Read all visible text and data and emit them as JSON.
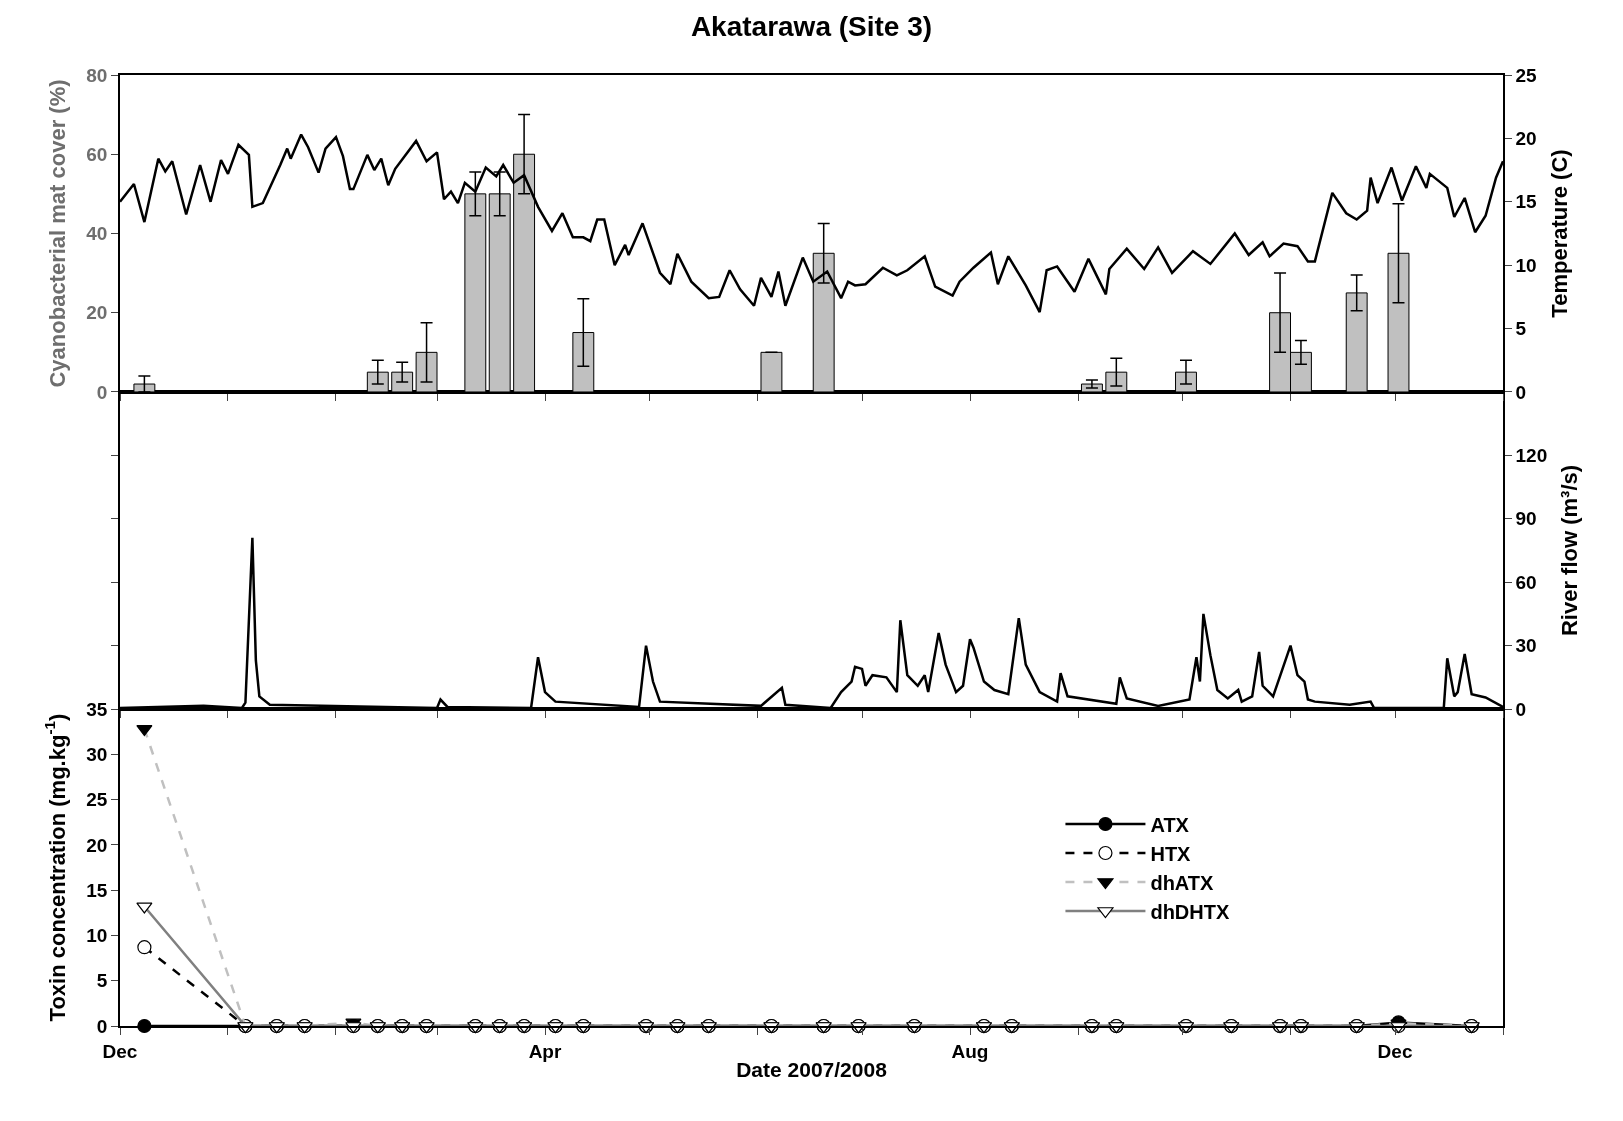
{
  "chart_data": [
    {
      "type": "bar",
      "title": "Akatarawa (Site 3)",
      "ylabel": "Cyanobacterial mat cover (%)",
      "y2label": "Temperature (C)",
      "xlim": [
        "2007-12-01",
        "2009-01-01"
      ],
      "xticks": [
        {
          "value": "2007-12-01",
          "label": null
        },
        {
          "value": "2008-01-01",
          "label": null
        },
        {
          "value": "2008-02-01",
          "label": null
        },
        {
          "value": "2008-03-01",
          "label": null
        },
        {
          "value": "2008-04-01",
          "label": null
        },
        {
          "value": "2008-05-01",
          "label": null
        },
        {
          "value": "2008-06-01",
          "label": null
        },
        {
          "value": "2008-07-01",
          "label": null
        },
        {
          "value": "2008-08-01",
          "label": null
        },
        {
          "value": "2008-09-01",
          "label": null
        },
        {
          "value": "2008-10-01",
          "label": null
        },
        {
          "value": "2008-11-01",
          "label": null
        },
        {
          "value": "2008-12-01",
          "label": null
        },
        {
          "value": "2009-01-01",
          "label": null
        }
      ],
      "ylim": [
        0,
        80
      ],
      "yticks": [
        0,
        20,
        40,
        60,
        80
      ],
      "y2lim": [
        0,
        25
      ],
      "y2ticks": [
        0,
        5,
        10,
        15,
        20,
        25
      ],
      "tick_labels": "y",
      "grid": false,
      "x": [
        "2007-12-08",
        "2008-02-13",
        "2008-02-20",
        "2008-02-27",
        "2008-03-12",
        "2008-03-19",
        "2008-03-26",
        "2008-04-12",
        "2008-06-05",
        "2008-06-20",
        "2008-09-05",
        "2008-09-12",
        "2008-10-02",
        "2008-10-29",
        "2008-11-04",
        "2008-11-20",
        "2008-12-02"
      ],
      "series": [
        {
          "type": "bar",
          "color": "#c0c0c0",
          "values": [
            2,
            5,
            5,
            10,
            50,
            50,
            60,
            15,
            10,
            35,
            2,
            5,
            5,
            20,
            10,
            25,
            35
          ],
          "errors": [
            2,
            3,
            2.5,
            7.5,
            5.5,
            5.5,
            10,
            8.5,
            null,
            7.5,
            1,
            3.5,
            3,
            10,
            3,
            4.5,
            12.5
          ]
        },
        {
          "type": "line",
          "axis": "y2",
          "color": "#000000",
          "x": [
            "2007-12-01",
            "2007-12-05",
            "2007-12-08",
            "2007-12-12",
            "2007-12-14",
            "2007-12-16",
            "2007-12-20",
            "2007-12-24",
            "2007-12-27",
            "2007-12-30",
            "2008-01-01",
            "2008-01-04",
            "2008-01-07",
            "2008-01-08",
            "2008-01-11",
            "2008-01-16",
            "2008-01-18",
            "2008-01-19",
            "2008-01-22",
            "2008-01-24",
            "2008-01-27",
            "2008-01-29",
            "2008-02-01",
            "2008-02-03",
            "2008-02-05",
            "2008-02-06",
            "2008-02-10",
            "2008-02-12",
            "2008-02-14",
            "2008-02-16",
            "2008-02-18",
            "2008-02-24",
            "2008-02-27",
            "2008-03-01",
            "2008-03-03",
            "2008-03-05",
            "2008-03-07",
            "2008-03-09",
            "2008-03-12",
            "2008-03-15",
            "2008-03-18",
            "2008-03-20",
            "2008-03-23",
            "2008-03-26",
            "2008-03-30",
            "2008-04-03",
            "2008-04-06",
            "2008-04-09",
            "2008-04-12",
            "2008-04-14",
            "2008-04-16",
            "2008-04-18",
            "2008-04-21",
            "2008-04-24",
            "2008-04-25",
            "2008-04-29",
            "2008-05-04",
            "2008-05-07",
            "2008-05-09",
            "2008-05-13",
            "2008-05-18",
            "2008-05-21",
            "2008-05-24",
            "2008-05-27",
            "2008-05-31",
            "2008-06-02",
            "2008-06-05",
            "2008-06-07",
            "2008-06-09",
            "2008-06-14",
            "2008-06-17",
            "2008-06-21",
            "2008-06-25",
            "2008-06-27",
            "2008-06-29",
            "2008-07-02",
            "2008-07-07",
            "2008-07-11",
            "2008-07-14",
            "2008-07-19",
            "2008-07-22",
            "2008-07-27",
            "2008-07-29",
            "2008-08-02",
            "2008-08-07",
            "2008-08-09",
            "2008-08-12",
            "2008-08-17",
            "2008-08-21",
            "2008-08-23",
            "2008-08-26",
            "2008-08-31",
            "2008-09-04",
            "2008-09-09",
            "2008-09-10",
            "2008-09-15",
            "2008-09-20",
            "2008-09-24",
            "2008-09-28",
            "2008-10-04",
            "2008-10-09",
            "2008-10-16",
            "2008-10-20",
            "2008-10-24",
            "2008-10-26",
            "2008-10-30",
            "2008-11-03",
            "2008-11-06",
            "2008-11-08",
            "2008-11-13",
            "2008-11-17",
            "2008-11-20",
            "2008-11-23",
            "2008-11-24",
            "2008-11-26",
            "2008-11-30",
            "2008-12-03",
            "2008-12-07",
            "2008-12-10",
            "2008-12-11",
            "2008-12-16",
            "2008-12-18",
            "2008-12-21",
            "2008-12-24",
            "2008-12-27",
            "2008-12-30",
            "2009-01-01"
          ],
          "values": [
            15.0,
            16.4,
            13.4,
            18.4,
            17.4,
            18.2,
            14.0,
            17.9,
            15.0,
            18.3,
            17.2,
            19.5,
            18.7,
            14.6,
            14.9,
            17.9,
            19.2,
            18.4,
            20.3,
            19.3,
            17.3,
            19.2,
            20.1,
            18.6,
            16.0,
            16.0,
            18.7,
            17.5,
            18.4,
            16.3,
            17.6,
            19.8,
            18.2,
            18.9,
            15.2,
            15.8,
            14.9,
            16.5,
            15.8,
            17.7,
            17.0,
            17.9,
            16.5,
            17.1,
            14.6,
            12.7,
            14.1,
            12.2,
            12.2,
            11.9,
            13.6,
            13.6,
            10.0,
            11.6,
            10.8,
            13.3,
            9.4,
            8.5,
            10.9,
            8.7,
            7.4,
            7.5,
            9.6,
            8.1,
            6.8,
            9.0,
            7.5,
            9.5,
            6.8,
            10.6,
            8.7,
            9.5,
            7.4,
            8.7,
            8.4,
            8.5,
            9.8,
            9.2,
            9.6,
            10.7,
            8.3,
            7.6,
            8.7,
            9.8,
            11.0,
            8.5,
            10.7,
            8.4,
            6.3,
            9.6,
            9.9,
            7.9,
            10.5,
            7.7,
            9.7,
            11.3,
            9.7,
            11.4,
            9.4,
            11.1,
            10.1,
            12.5,
            10.8,
            11.8,
            10.7,
            11.7,
            11.5,
            10.3,
            10.3,
            15.7,
            14.1,
            13.6,
            14.3,
            16.9,
            14.9,
            17.7,
            15.1,
            17.8,
            16.1,
            17.2,
            16.1,
            13.8,
            15.3,
            12.6,
            13.9,
            16.9,
            18.2
          ]
        }
      ]
    },
    {
      "type": "line",
      "y2label": "River flow (m³/s)",
      "xlim": [
        "2007-12-01",
        "2009-01-01"
      ],
      "xticks": [
        {
          "value": "2007-12-01",
          "label": null
        },
        {
          "value": "2008-01-01",
          "label": null
        },
        {
          "value": "2008-02-01",
          "label": null
        },
        {
          "value": "2008-03-01",
          "label": null
        },
        {
          "value": "2008-04-01",
          "label": null
        },
        {
          "value": "2008-05-01",
          "label": null
        },
        {
          "value": "2008-06-01",
          "label": null
        },
        {
          "value": "2008-07-01",
          "label": null
        },
        {
          "value": "2008-08-01",
          "label": null
        },
        {
          "value": "2008-09-01",
          "label": null
        },
        {
          "value": "2008-10-01",
          "label": null
        },
        {
          "value": "2008-11-01",
          "label": null
        },
        {
          "value": "2008-12-01",
          "label": null
        },
        {
          "value": "2009-01-01",
          "label": null
        }
      ],
      "y2lim": [
        0,
        150
      ],
      "y2ticks": [
        0,
        30,
        60,
        90,
        120
      ],
      "tick_labels": "y",
      "grid": false,
      "series": [
        {
          "axis": "y2",
          "color": "#000000",
          "x": [
            "2007-12-01",
            "2007-12-25",
            "2008-01-05",
            "2008-01-06",
            "2008-01-08",
            "2008-01-09",
            "2008-01-10",
            "2008-01-13",
            "2008-03-01",
            "2008-03-02",
            "2008-03-04",
            "2008-03-28",
            "2008-03-30",
            "2008-04-01",
            "2008-04-04",
            "2008-04-28",
            "2008-04-30",
            "2008-05-02",
            "2008-05-04",
            "2008-06-02",
            "2008-06-08",
            "2008-06-09",
            "2008-06-22",
            "2008-06-25",
            "2008-06-28",
            "2008-06-29",
            "2008-07-01",
            "2008-07-02",
            "2008-07-04",
            "2008-07-08",
            "2008-07-11",
            "2008-07-12",
            "2008-07-14",
            "2008-07-17",
            "2008-07-19",
            "2008-07-20",
            "2008-07-23",
            "2008-07-25",
            "2008-07-28",
            "2008-07-30",
            "2008-08-01",
            "2008-08-02",
            "2008-08-05",
            "2008-08-08",
            "2008-08-12",
            "2008-08-15",
            "2008-08-17",
            "2008-08-21",
            "2008-08-26",
            "2008-08-27",
            "2008-08-29",
            "2008-09-12",
            "2008-09-13",
            "2008-09-15",
            "2008-09-24",
            "2008-10-03",
            "2008-10-05",
            "2008-10-06",
            "2008-10-07",
            "2008-10-09",
            "2008-10-11",
            "2008-10-14",
            "2008-10-17",
            "2008-10-18",
            "2008-10-21",
            "2008-10-23",
            "2008-10-24",
            "2008-10-27",
            "2008-11-01",
            "2008-11-03",
            "2008-11-05",
            "2008-11-06",
            "2008-11-08",
            "2008-11-18",
            "2008-11-24",
            "2008-11-25",
            "2008-12-15",
            "2008-12-16",
            "2008-12-18",
            "2008-12-19",
            "2008-12-21",
            "2008-12-23",
            "2008-12-27",
            "2009-01-01"
          ],
          "values": [
            0.5,
            1.5,
            0.5,
            3,
            81,
            23,
            6,
            2,
            0.5,
            4.5,
            1,
            0.5,
            24.5,
            8,
            3.5,
            1,
            30,
            13,
            3.5,
            1.5,
            10,
            2,
            0.5,
            8,
            13,
            20,
            19,
            11,
            16,
            15,
            8,
            42,
            16,
            11,
            16,
            8,
            36,
            21,
            8,
            11,
            33,
            29,
            13,
            9,
            7,
            43,
            21,
            8,
            3.5,
            17,
            6,
            2.5,
            15,
            5,
            1.5,
            4.5,
            24.5,
            13,
            45,
            25.5,
            9,
            5,
            9,
            3.5,
            6,
            27,
            11,
            6,
            30,
            16,
            13,
            4.5,
            3.5,
            2,
            3.5,
            0.5,
            0.5,
            24,
            6,
            8,
            26,
            7,
            5.5,
            1
          ]
        }
      ]
    },
    {
      "type": "line",
      "xlabel": "Date 2007/2008",
      "ylabel": "Toxin concentration (mg.kg$^{-1}$)",
      "xlim": [
        "2007-12-01",
        "2009-01-01"
      ],
      "xticks": [
        {
          "value": "2007-12-01",
          "label": "Dec"
        },
        {
          "value": "2008-01-01",
          "label": null
        },
        {
          "value": "2008-02-01",
          "label": null
        },
        {
          "value": "2008-03-01",
          "label": null
        },
        {
          "value": "2008-04-01",
          "label": "Apr"
        },
        {
          "value": "2008-05-01",
          "label": null
        },
        {
          "value": "2008-06-01",
          "label": null
        },
        {
          "value": "2008-07-01",
          "label": null
        },
        {
          "value": "2008-08-01",
          "label": "Aug"
        },
        {
          "value": "2008-09-01",
          "label": null
        },
        {
          "value": "2008-10-01",
          "label": null
        },
        {
          "value": "2008-11-01",
          "label": null
        },
        {
          "value": "2008-12-01",
          "label": "Dec"
        },
        {
          "value": "2009-01-01",
          "label": null
        }
      ],
      "ylim": [
        0,
        35
      ],
      "yticks": [
        0,
        5,
        10,
        15,
        20,
        25,
        30,
        35
      ],
      "grid": false,
      "legend": "right",
      "x": [
        "2007-12-08",
        "2008-01-06",
        "2008-01-15",
        "2008-01-23",
        "2008-02-06",
        "2008-02-13",
        "2008-02-20",
        "2008-02-27",
        "2008-03-12",
        "2008-03-19",
        "2008-03-26",
        "2008-04-04",
        "2008-04-12",
        "2008-04-30",
        "2008-05-09",
        "2008-05-18",
        "2008-06-05",
        "2008-06-20",
        "2008-06-30",
        "2008-07-16",
        "2008-08-05",
        "2008-08-13",
        "2008-09-05",
        "2008-09-12",
        "2008-10-02",
        "2008-10-15",
        "2008-10-29",
        "2008-11-04",
        "2008-11-20",
        "2008-12-02",
        "2008-12-23"
      ],
      "series": [
        {
          "name": "ATX",
          "color": "#000000",
          "marker": "circle",
          "line_style": "solid",
          "values": [
            0,
            0,
            0,
            0,
            0,
            0,
            0,
            0,
            0,
            0,
            0,
            0,
            0,
            0,
            0,
            0,
            0,
            0,
            0,
            0,
            0,
            0,
            0,
            0,
            0,
            0,
            0,
            0,
            0,
            0.4,
            0
          ]
        },
        {
          "name": "HTX",
          "color": "#000000",
          "marker": "circle",
          "line_style": "dashed",
          "values": [
            8.7,
            0,
            0,
            0,
            0,
            0,
            0,
            0,
            0,
            0,
            0,
            0,
            0,
            0,
            0,
            0,
            0,
            0,
            0,
            0,
            0,
            0,
            0,
            0,
            0,
            0,
            0,
            0,
            0,
            0,
            0
          ]
        },
        {
          "name": "dhATX",
          "color": "#c0c0c0",
          "marker": "triangle",
          "line_style": "dashed",
          "values": [
            32.8,
            0,
            0,
            0,
            0.4,
            0,
            0,
            0,
            0,
            0,
            0,
            0,
            0,
            0,
            0,
            0,
            0,
            0,
            0,
            0,
            0,
            0,
            0,
            0,
            0,
            0,
            0,
            0,
            0,
            0.3,
            0
          ]
        },
        {
          "name": "dhDHTX",
          "color": "#808080",
          "marker": "triangle",
          "line_style": "solid",
          "values": [
            13.2,
            0,
            0,
            0,
            0,
            0,
            0,
            0,
            0,
            0,
            0,
            0,
            0,
            0,
            0,
            0,
            0,
            0,
            0,
            0,
            0,
            0,
            0,
            0,
            0,
            0,
            0,
            0,
            0,
            0,
            0
          ]
        }
      ]
    }
  ]
}
